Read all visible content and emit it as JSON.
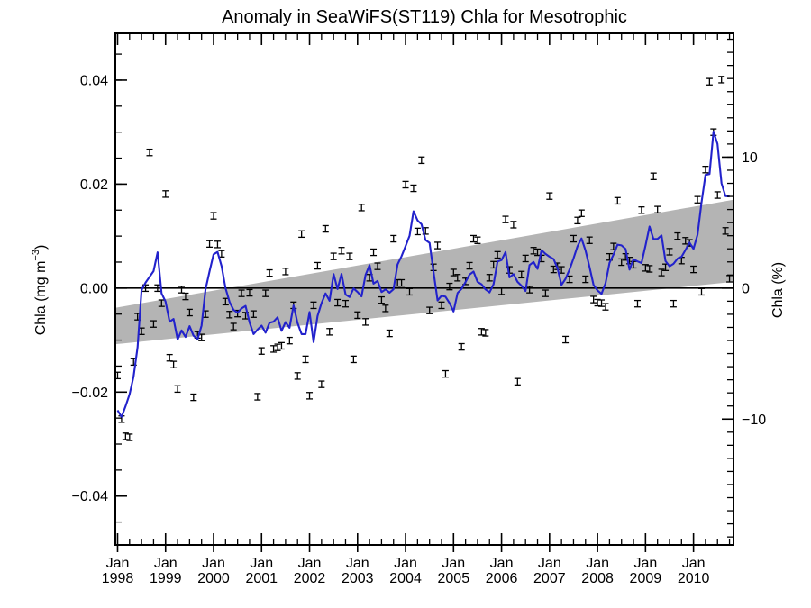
{
  "chart_data": {
    "type": "line+scatter",
    "title": "Anomaly in SeaWiFS(ST119) Chla for Mesotrophic",
    "ylabel_left_parts": [
      "Chla (mg m",
      "−3",
      ")"
    ],
    "ylabel_right": "Chla (%)",
    "xlabel_month_word": "Jan",
    "x_tick_years": [
      "1998",
      "1999",
      "2000",
      "2001",
      "2002",
      "2003",
      "2004",
      "2005",
      "2006",
      "2007",
      "2008",
      "2009",
      "2010"
    ],
    "x_minor_step_months": 3,
    "xlim_months": [
      -0.56,
      154.0
    ],
    "ylim_milli": [
      -49.4,
      49.0
    ],
    "y_major_ticks_milli": [
      -40,
      -20,
      0,
      20,
      40
    ],
    "y_major_labels": [
      "−0.04",
      "−0.02",
      "0.00",
      "0.02",
      "0.04"
    ],
    "y_minor_step_milli": 5,
    "right_axis": {
      "tick_values_pct": [
        -10,
        0,
        10
      ],
      "tick_labels": [
        "−10",
        "0",
        "10"
      ],
      "minor_step_pct": 1,
      "milli_per_percent": 2.5192
    },
    "zero_line_value": 0,
    "series_monthly": {
      "start_label": "Jan 1998",
      "end_label": "Oct 2010",
      "units": "mg m-3 (values in thousandths)",
      "values_milli": [
        -16.8,
        -25.2,
        -28.5,
        -28.7,
        -14.2,
        -5.5,
        -8.3,
        0.0,
        26.1,
        -6.9,
        0.0,
        -2.9,
        18.1,
        -13.4,
        -14.7,
        -19.4,
        -0.3,
        -1.6,
        -4.7,
        -21.0,
        -9.0,
        -9.5,
        -5.0,
        8.5,
        13.9,
        8.4,
        6.6,
        -2.6,
        -5.1,
        -7.4,
        -4.9,
        -1.0,
        -5.3,
        -0.9,
        -5.0,
        -20.9,
        -12.1,
        -1.0,
        2.9,
        -11.7,
        -11.4,
        -11.1,
        3.2,
        -10.1,
        -3.3,
        -16.9,
        10.4,
        -13.7,
        -20.7,
        -3.3,
        4.3,
        -18.5,
        11.4,
        -8.4,
        6.1,
        -2.8,
        7.2,
        -3.0,
        6.1,
        -13.7,
        -5.2,
        15.5,
        -6.5,
        2.0,
        6.9,
        4.2,
        -2.3,
        -3.9,
        -8.7,
        9.5,
        1.0,
        1.0,
        19.9,
        -0.7,
        19.2,
        10.9,
        24.6,
        11.0,
        -4.3,
        4.0,
        8.2,
        -3.3,
        -16.5,
        0.3,
        3.0,
        2.0,
        -11.3,
        1.3,
        4.3,
        9.5,
        9.2,
        -8.4,
        -8.6,
        2.0,
        4.5,
        6.4,
        -0.6,
        13.2,
        3.5,
        12.2,
        -18.0,
        2.6,
        5.7,
        -0.3,
        7.2,
        6.9,
        5.7,
        -1.0,
        17.7,
        3.6,
        4.2,
        3.5,
        -9.9,
        1.7,
        9.5,
        13.0,
        14.4,
        1.7,
        9.2,
        -2.2,
        -2.8,
        -2.9,
        -3.6,
        6.0,
        8.0,
        16.8,
        5.0,
        6.0,
        5.3,
        4.5,
        -3.0,
        15.0,
        3.9,
        3.7,
        21.5,
        15.1,
        3.0,
        4.0,
        7.0,
        -3.0,
        10.0,
        5.3,
        9.1,
        8.7,
        3.6,
        17.0,
        -0.7,
        22.8,
        39.7,
        30.0,
        17.9,
        40.1,
        11.0,
        1.8
      ]
    },
    "error_bar_half_milli": 0.62,
    "smooth_window": 5,
    "trend_band": {
      "x_months": [
        -0.56,
        154.0
      ],
      "top_milli": [
        -3.8,
        17.0
      ],
      "bottom_milli": [
        -10.8,
        1.2
      ]
    },
    "colors": {
      "background": "#ffffff",
      "axis": "#000000",
      "marker": "#000000",
      "smooth_line": "#2222cc",
      "band": "#b4b4b4"
    },
    "legend": "none",
    "grid": "off"
  }
}
